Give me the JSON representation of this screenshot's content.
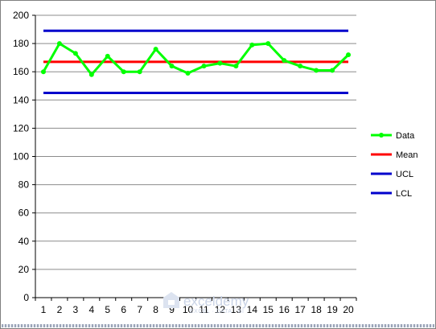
{
  "chart_data": {
    "type": "line",
    "title": "",
    "xlabel": "",
    "ylabel": "",
    "categories": [
      "1",
      "2",
      "3",
      "4",
      "5",
      "6",
      "7",
      "8",
      "9",
      "10",
      "11",
      "12",
      "13",
      "14",
      "15",
      "16",
      "17",
      "18",
      "19",
      "20"
    ],
    "ylim": [
      0,
      200
    ],
    "yticks": [
      0,
      20,
      40,
      60,
      80,
      100,
      120,
      140,
      160,
      180,
      200
    ],
    "grid": "horizontal",
    "legend_position": "right",
    "series": [
      {
        "name": "Data",
        "color": "#00ff00",
        "marker": "circle",
        "values": [
          160,
          180,
          173,
          158,
          171,
          160,
          160,
          176,
          164,
          159,
          164,
          166,
          164,
          179,
          180,
          168,
          164,
          161,
          161,
          172
        ]
      },
      {
        "name": "Mean",
        "color": "#ff0000",
        "values": [
          167,
          167,
          167,
          167,
          167,
          167,
          167,
          167,
          167,
          167,
          167,
          167,
          167,
          167,
          167,
          167,
          167,
          167,
          167,
          167
        ]
      },
      {
        "name": "UCL",
        "color": "#0000cc",
        "values": [
          189,
          189,
          189,
          189,
          189,
          189,
          189,
          189,
          189,
          189,
          189,
          189,
          189,
          189,
          189,
          189,
          189,
          189,
          189,
          189
        ]
      },
      {
        "name": "LCL",
        "color": "#0000cc",
        "values": [
          145,
          145,
          145,
          145,
          145,
          145,
          145,
          145,
          145,
          145,
          145,
          145,
          145,
          145,
          145,
          145,
          145,
          145,
          145,
          145
        ]
      }
    ]
  },
  "watermark": {
    "brand": "exceldemy",
    "tagline": "EXCEL · DATA · BI",
    "icon": "exceldemy-logo-icon"
  }
}
